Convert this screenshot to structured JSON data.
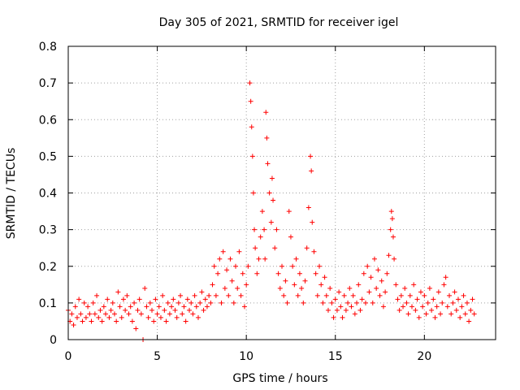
{
  "chart_data": {
    "type": "scatter",
    "title": "Day 305 of 2021, SRMTID for receiver igel",
    "xlabel": "GPS time / hours",
    "ylabel": "SRMTID / TECUs",
    "xlim": [
      0,
      24
    ],
    "ylim": [
      0,
      0.8
    ],
    "x_ticks": [
      0,
      5,
      10,
      15,
      20
    ],
    "x_tick_labels": [
      "0",
      "5",
      "10",
      "15",
      "20"
    ],
    "y_ticks": [
      0,
      0.1,
      0.2,
      0.3,
      0.4,
      0.5,
      0.6,
      0.7,
      0.8
    ],
    "y_tick_labels": [
      "0",
      "0.1",
      "0.2",
      "0.3",
      "0.4",
      "0.5",
      "0.6",
      "0.7",
      "0.8"
    ],
    "grid": true,
    "marker": "+",
    "color": "#ff0000",
    "series": [
      {
        "name": "SRMTID",
        "points": [
          [
            0.0,
            0.08
          ],
          [
            0.1,
            0.05
          ],
          [
            0.2,
            0.07
          ],
          [
            0.3,
            0.04
          ],
          [
            0.4,
            0.09
          ],
          [
            0.5,
            0.06
          ],
          [
            0.6,
            0.11
          ],
          [
            0.7,
            0.07
          ],
          [
            0.8,
            0.05
          ],
          [
            0.9,
            0.1
          ],
          [
            1.0,
            0.06
          ],
          [
            1.1,
            0.09
          ],
          [
            1.2,
            0.07
          ],
          [
            1.3,
            0.05
          ],
          [
            1.4,
            0.1
          ],
          [
            1.5,
            0.07
          ],
          [
            1.6,
            0.12
          ],
          [
            1.7,
            0.06
          ],
          [
            1.8,
            0.08
          ],
          [
            1.9,
            0.05
          ],
          [
            2.0,
            0.09
          ],
          [
            2.1,
            0.07
          ],
          [
            2.2,
            0.11
          ],
          [
            2.3,
            0.06
          ],
          [
            2.4,
            0.08
          ],
          [
            2.5,
            0.1
          ],
          [
            2.6,
            0.07
          ],
          [
            2.7,
            0.05
          ],
          [
            2.8,
            0.13
          ],
          [
            2.9,
            0.09
          ],
          [
            3.0,
            0.06
          ],
          [
            3.1,
            0.11
          ],
          [
            3.2,
            0.08
          ],
          [
            3.3,
            0.12
          ],
          [
            3.4,
            0.07
          ],
          [
            3.5,
            0.09
          ],
          [
            3.6,
            0.05
          ],
          [
            3.7,
            0.1
          ],
          [
            3.8,
            0.03
          ],
          [
            3.9,
            0.08
          ],
          [
            4.0,
            0.11
          ],
          [
            4.1,
            0.07
          ],
          [
            4.2,
            0.0
          ],
          [
            4.3,
            0.14
          ],
          [
            4.4,
            0.09
          ],
          [
            4.5,
            0.06
          ],
          [
            4.6,
            0.1
          ],
          [
            4.7,
            0.08
          ],
          [
            4.8,
            0.05
          ],
          [
            4.9,
            0.11
          ],
          [
            5.0,
            0.07
          ],
          [
            5.1,
            0.09
          ],
          [
            5.2,
            0.06
          ],
          [
            5.3,
            0.12
          ],
          [
            5.4,
            0.08
          ],
          [
            5.5,
            0.05
          ],
          [
            5.6,
            0.1
          ],
          [
            5.7,
            0.07
          ],
          [
            5.8,
            0.09
          ],
          [
            5.9,
            0.11
          ],
          [
            6.0,
            0.08
          ],
          [
            6.1,
            0.06
          ],
          [
            6.2,
            0.1
          ],
          [
            6.3,
            0.12
          ],
          [
            6.4,
            0.07
          ],
          [
            6.5,
            0.09
          ],
          [
            6.6,
            0.05
          ],
          [
            6.7,
            0.11
          ],
          [
            6.8,
            0.08
          ],
          [
            6.9,
            0.1
          ],
          [
            7.0,
            0.07
          ],
          [
            7.1,
            0.12
          ],
          [
            7.2,
            0.09
          ],
          [
            7.3,
            0.06
          ],
          [
            7.4,
            0.1
          ],
          [
            7.5,
            0.13
          ],
          [
            7.6,
            0.08
          ],
          [
            7.7,
            0.11
          ],
          [
            7.8,
            0.09
          ],
          [
            7.9,
            0.12
          ],
          [
            8.0,
            0.1
          ],
          [
            8.1,
            0.15
          ],
          [
            8.2,
            0.2
          ],
          [
            8.3,
            0.12
          ],
          [
            8.4,
            0.18
          ],
          [
            8.5,
            0.22
          ],
          [
            8.6,
            0.1
          ],
          [
            8.7,
            0.24
          ],
          [
            8.8,
            0.14
          ],
          [
            8.9,
            0.19
          ],
          [
            9.0,
            0.12
          ],
          [
            9.1,
            0.22
          ],
          [
            9.2,
            0.16
          ],
          [
            9.3,
            0.1
          ],
          [
            9.4,
            0.2
          ],
          [
            9.5,
            0.14
          ],
          [
            9.6,
            0.24
          ],
          [
            9.7,
            0.12
          ],
          [
            9.8,
            0.18
          ],
          [
            9.9,
            0.09
          ],
          [
            10.0,
            0.15
          ],
          [
            10.1,
            0.2
          ],
          [
            10.2,
            0.7
          ],
          [
            10.25,
            0.65
          ],
          [
            10.3,
            0.58
          ],
          [
            10.35,
            0.5
          ],
          [
            10.4,
            0.4
          ],
          [
            10.45,
            0.3
          ],
          [
            10.5,
            0.25
          ],
          [
            10.6,
            0.18
          ],
          [
            10.7,
            0.22
          ],
          [
            10.8,
            0.28
          ],
          [
            10.9,
            0.35
          ],
          [
            11.0,
            0.3
          ],
          [
            11.05,
            0.22
          ],
          [
            11.1,
            0.62
          ],
          [
            11.15,
            0.55
          ],
          [
            11.2,
            0.48
          ],
          [
            11.3,
            0.4
          ],
          [
            11.4,
            0.32
          ],
          [
            11.45,
            0.44
          ],
          [
            11.5,
            0.38
          ],
          [
            11.6,
            0.25
          ],
          [
            11.7,
            0.3
          ],
          [
            11.8,
            0.18
          ],
          [
            11.9,
            0.14
          ],
          [
            12.0,
            0.2
          ],
          [
            12.1,
            0.12
          ],
          [
            12.2,
            0.16
          ],
          [
            12.3,
            0.1
          ],
          [
            12.4,
            0.35
          ],
          [
            12.5,
            0.28
          ],
          [
            12.6,
            0.2
          ],
          [
            12.7,
            0.15
          ],
          [
            12.8,
            0.22
          ],
          [
            12.9,
            0.12
          ],
          [
            13.0,
            0.18
          ],
          [
            13.1,
            0.14
          ],
          [
            13.2,
            0.1
          ],
          [
            13.3,
            0.16
          ],
          [
            13.4,
            0.25
          ],
          [
            13.5,
            0.36
          ],
          [
            13.6,
            0.5
          ],
          [
            13.65,
            0.46
          ],
          [
            13.7,
            0.32
          ],
          [
            13.8,
            0.24
          ],
          [
            13.9,
            0.18
          ],
          [
            14.0,
            0.12
          ],
          [
            14.1,
            0.2
          ],
          [
            14.2,
            0.15
          ],
          [
            14.3,
            0.1
          ],
          [
            14.4,
            0.17
          ],
          [
            14.5,
            0.12
          ],
          [
            14.6,
            0.08
          ],
          [
            14.7,
            0.14
          ],
          [
            14.8,
            0.1
          ],
          [
            14.9,
            0.06
          ],
          [
            15.0,
            0.11
          ],
          [
            15.1,
            0.08
          ],
          [
            15.2,
            0.13
          ],
          [
            15.3,
            0.09
          ],
          [
            15.4,
            0.06
          ],
          [
            15.5,
            0.12
          ],
          [
            15.6,
            0.08
          ],
          [
            15.7,
            0.1
          ],
          [
            15.8,
            0.14
          ],
          [
            15.9,
            0.09
          ],
          [
            16.0,
            0.12
          ],
          [
            16.1,
            0.07
          ],
          [
            16.2,
            0.1
          ],
          [
            16.3,
            0.15
          ],
          [
            16.4,
            0.08
          ],
          [
            16.5,
            0.11
          ],
          [
            16.6,
            0.18
          ],
          [
            16.7,
            0.1
          ],
          [
            16.8,
            0.2
          ],
          [
            16.9,
            0.13
          ],
          [
            17.0,
            0.17
          ],
          [
            17.1,
            0.1
          ],
          [
            17.2,
            0.22
          ],
          [
            17.3,
            0.14
          ],
          [
            17.4,
            0.19
          ],
          [
            17.5,
            0.12
          ],
          [
            17.6,
            0.16
          ],
          [
            17.7,
            0.09
          ],
          [
            17.8,
            0.13
          ],
          [
            17.9,
            0.18
          ],
          [
            18.0,
            0.23
          ],
          [
            18.1,
            0.3
          ],
          [
            18.15,
            0.35
          ],
          [
            18.2,
            0.33
          ],
          [
            18.25,
            0.28
          ],
          [
            18.3,
            0.22
          ],
          [
            18.4,
            0.15
          ],
          [
            18.5,
            0.11
          ],
          [
            18.6,
            0.08
          ],
          [
            18.7,
            0.12
          ],
          [
            18.8,
            0.09
          ],
          [
            18.9,
            0.14
          ],
          [
            19.0,
            0.1
          ],
          [
            19.1,
            0.07
          ],
          [
            19.2,
            0.12
          ],
          [
            19.3,
            0.09
          ],
          [
            19.4,
            0.15
          ],
          [
            19.5,
            0.08
          ],
          [
            19.6,
            0.11
          ],
          [
            19.7,
            0.06
          ],
          [
            19.8,
            0.13
          ],
          [
            19.9,
            0.09
          ],
          [
            20.0,
            0.12
          ],
          [
            20.1,
            0.07
          ],
          [
            20.2,
            0.1
          ],
          [
            20.3,
            0.14
          ],
          [
            20.4,
            0.08
          ],
          [
            20.5,
            0.11
          ],
          [
            20.6,
            0.06
          ],
          [
            20.7,
            0.09
          ],
          [
            20.8,
            0.13
          ],
          [
            20.9,
            0.07
          ],
          [
            21.0,
            0.1
          ],
          [
            21.1,
            0.15
          ],
          [
            21.2,
            0.17
          ],
          [
            21.3,
            0.09
          ],
          [
            21.4,
            0.12
          ],
          [
            21.5,
            0.07
          ],
          [
            21.6,
            0.1
          ],
          [
            21.7,
            0.13
          ],
          [
            21.8,
            0.08
          ],
          [
            21.9,
            0.11
          ],
          [
            22.0,
            0.06
          ],
          [
            22.1,
            0.09
          ],
          [
            22.2,
            0.12
          ],
          [
            22.3,
            0.07
          ],
          [
            22.4,
            0.1
          ],
          [
            22.5,
            0.05
          ],
          [
            22.6,
            0.08
          ],
          [
            22.7,
            0.11
          ],
          [
            22.8,
            0.07
          ]
        ]
      }
    ]
  }
}
